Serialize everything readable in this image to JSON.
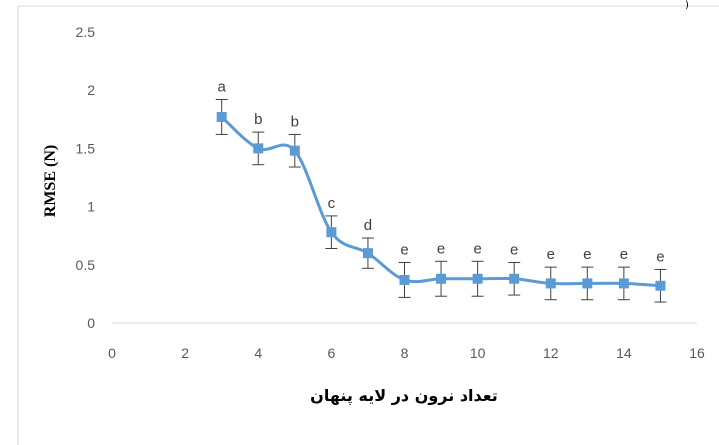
{
  "corner_text": ")",
  "chart_data": {
    "type": "line",
    "title": "",
    "xlabel": "تعداد نرون در لایه پنهان",
    "ylabel": "RMSE (N)",
    "xlim": [
      0,
      16
    ],
    "ylim": [
      0,
      2.5
    ],
    "xticks": [
      0,
      2,
      4,
      6,
      8,
      10,
      12,
      14,
      16
    ],
    "yticks": [
      0,
      0.5,
      1,
      1.5,
      2,
      2.5
    ],
    "xtick_labels": [
      "0",
      "2",
      "4",
      "6",
      "8",
      "10",
      "12",
      "14",
      "16"
    ],
    "ytick_labels": [
      "0",
      "0.5",
      "1",
      "1.5",
      "2",
      "2.5"
    ],
    "grid": false,
    "legend": false,
    "color": "#5b9bd5",
    "errorbar_color": "#404040",
    "series": [
      {
        "x": [
          3,
          4,
          5,
          6,
          7,
          8,
          9,
          10,
          11,
          12,
          13,
          14,
          15
        ],
        "y": [
          1.77,
          1.5,
          1.48,
          0.78,
          0.6,
          0.37,
          0.38,
          0.38,
          0.38,
          0.34,
          0.34,
          0.34,
          0.32
        ],
        "error": [
          0.15,
          0.14,
          0.14,
          0.14,
          0.13,
          0.15,
          0.15,
          0.15,
          0.14,
          0.14,
          0.14,
          0.14,
          0.14
        ],
        "labels": [
          "a",
          "b",
          "b",
          "c",
          "d",
          "e",
          "e",
          "e",
          "e",
          "e",
          "e",
          "e",
          "e"
        ]
      }
    ]
  }
}
